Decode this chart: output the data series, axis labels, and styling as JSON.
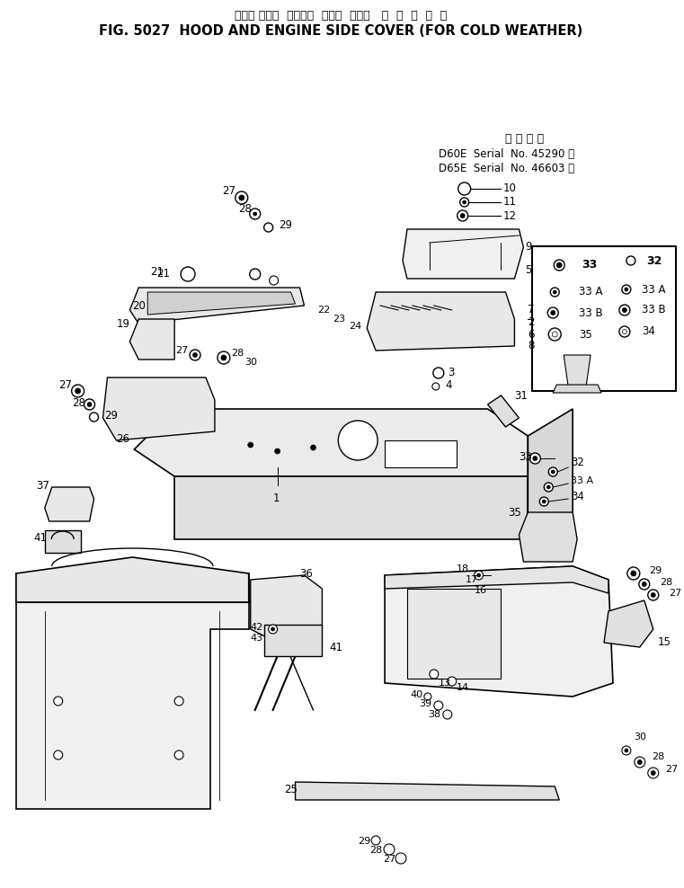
{
  "title_japanese": "フード および  エンジン  サイド  カバー   寒  冷  地  仕  機",
  "title_english": "FIG. 5027  HOOD AND ENGINE SIDE COVER (FOR COLD WEATHER)",
  "serial_title": "通 用 号 機",
  "serial_d60e": "D60E  Serial  No. 45290 ～",
  "serial_d65e": "D65E  Serial  No. 46603 ～",
  "bg_color": "#ffffff",
  "lc": "#000000"
}
